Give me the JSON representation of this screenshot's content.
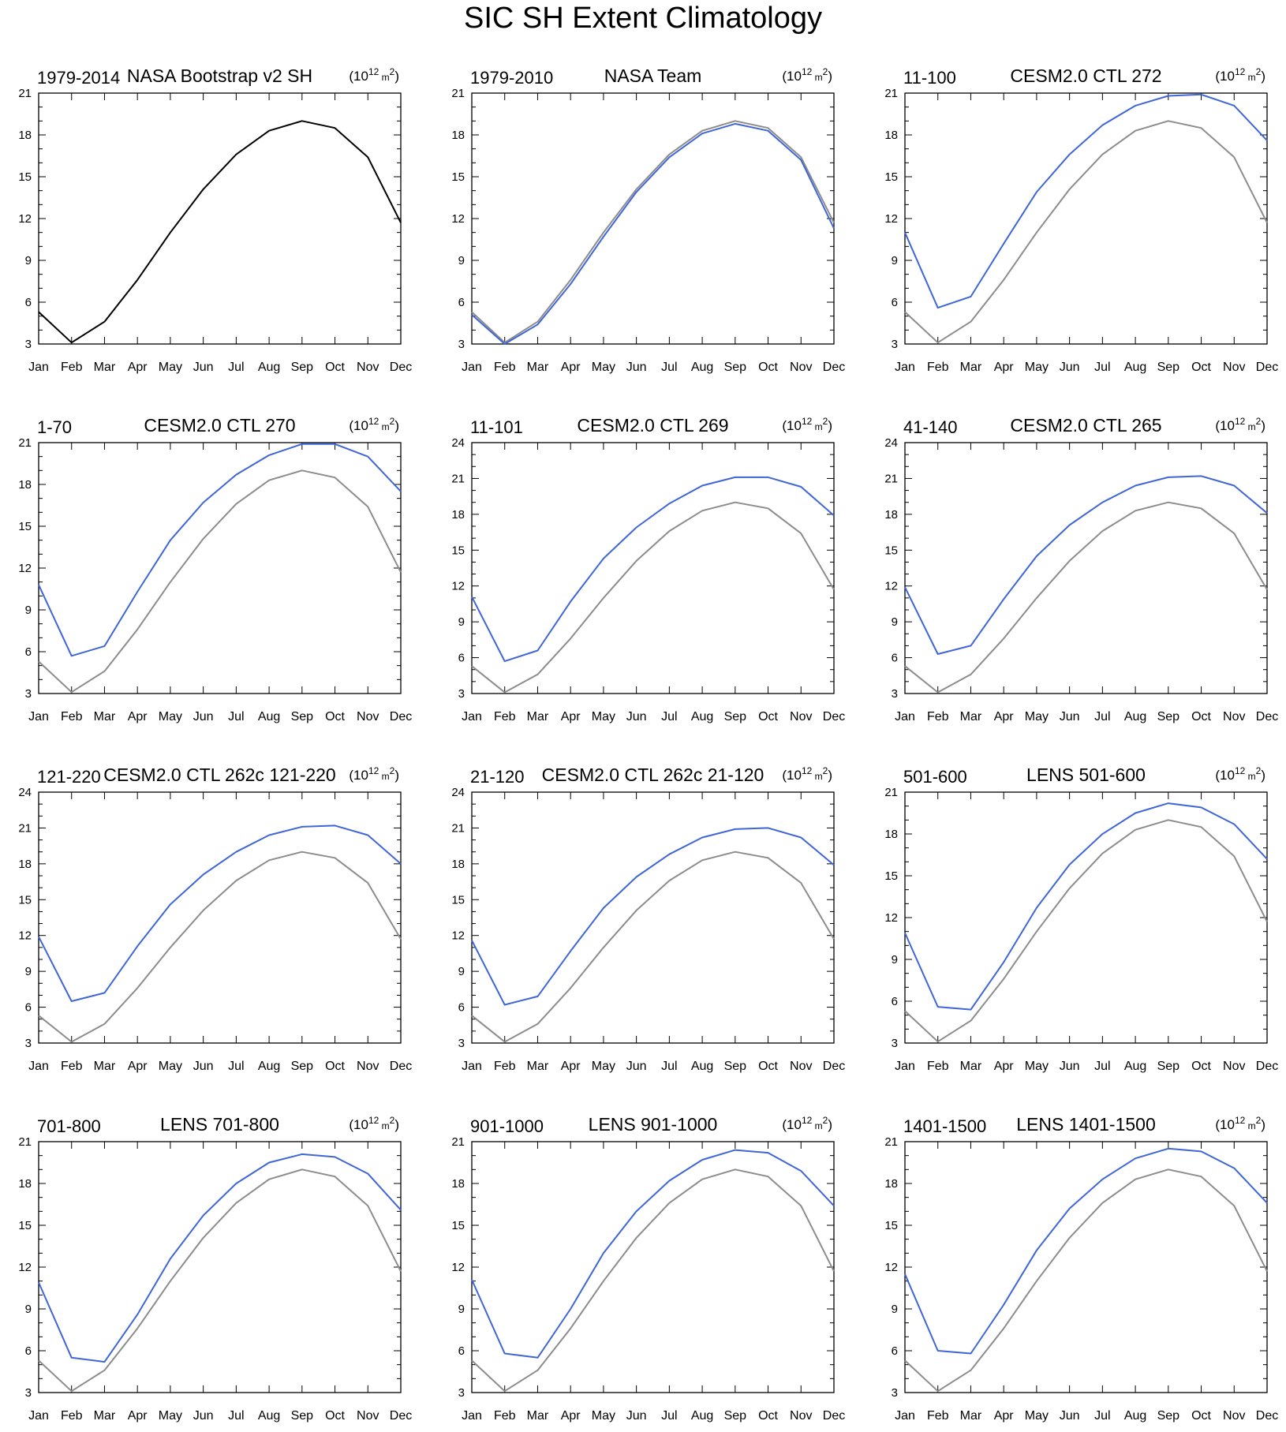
{
  "figure_title": "SIC SH Extent Climatology",
  "colors": {
    "observed": "#000000",
    "reference": "#8c8c8c",
    "model": "#3f66d8"
  },
  "chart_data": [
    {
      "type": "line",
      "period": "1979-2014",
      "title": "NASA Bootstrap v2 SH",
      "units": "(10^12 m^2)",
      "categories": [
        "Jan",
        "Feb",
        "Mar",
        "Apr",
        "May",
        "Jun",
        "Jul",
        "Aug",
        "Sep",
        "Oct",
        "Nov",
        "Dec"
      ],
      "ylim": [
        3,
        21
      ],
      "yticks": [
        3,
        6,
        9,
        12,
        15,
        18,
        21
      ],
      "series": [
        {
          "values": [
            5.3,
            3.1,
            4.6,
            7.6,
            11.0,
            14.1,
            16.6,
            18.3,
            19.0,
            18.5,
            16.4,
            11.7
          ],
          "color": "#000000"
        }
      ]
    },
    {
      "type": "line",
      "period": "1979-2010",
      "title": "NASA Team",
      "units": "(10^12 m^2)",
      "categories": [
        "Jan",
        "Feb",
        "Mar",
        "Apr",
        "May",
        "Jun",
        "Jul",
        "Aug",
        "Sep",
        "Oct",
        "Nov",
        "Dec"
      ],
      "ylim": [
        3,
        21
      ],
      "yticks": [
        3,
        6,
        9,
        12,
        15,
        18,
        21
      ],
      "series": [
        {
          "values": [
            5.3,
            3.1,
            4.6,
            7.6,
            11.0,
            14.1,
            16.6,
            18.3,
            19.0,
            18.5,
            16.4,
            11.7
          ],
          "color": "#8c8c8c"
        },
        {
          "values": [
            5.1,
            3.0,
            4.4,
            7.3,
            10.7,
            13.9,
            16.4,
            18.1,
            18.8,
            18.3,
            16.2,
            11.3
          ],
          "color": "#3f66d8"
        }
      ]
    },
    {
      "type": "line",
      "period": "11-100",
      "title": "CESM2.0 CTL 272",
      "units": "(10^12 m^2)",
      "categories": [
        "Jan",
        "Feb",
        "Mar",
        "Apr",
        "May",
        "Jun",
        "Jul",
        "Aug",
        "Sep",
        "Oct",
        "Nov",
        "Dec"
      ],
      "ylim": [
        3,
        21
      ],
      "yticks": [
        3,
        6,
        9,
        12,
        15,
        18,
        21
      ],
      "series": [
        {
          "values": [
            5.3,
            3.1,
            4.6,
            7.6,
            11.0,
            14.1,
            16.6,
            18.3,
            19.0,
            18.5,
            16.4,
            11.7
          ],
          "color": "#8c8c8c"
        },
        {
          "values": [
            11.0,
            5.6,
            6.4,
            10.2,
            13.9,
            16.6,
            18.7,
            20.1,
            20.8,
            20.9,
            20.1,
            17.6
          ],
          "color": "#3f66d8"
        }
      ]
    },
    {
      "type": "line",
      "period": "1-70",
      "title": "CESM2.0 CTL 270",
      "units": "(10^12 m^2)",
      "categories": [
        "Jan",
        "Feb",
        "Mar",
        "Apr",
        "May",
        "Jun",
        "Jul",
        "Aug",
        "Sep",
        "Oct",
        "Nov",
        "Dec"
      ],
      "ylim": [
        3,
        21
      ],
      "yticks": [
        3,
        6,
        9,
        12,
        15,
        18,
        21
      ],
      "series": [
        {
          "values": [
            5.3,
            3.1,
            4.6,
            7.6,
            11.0,
            14.1,
            16.6,
            18.3,
            19.0,
            18.5,
            16.4,
            11.7
          ],
          "color": "#8c8c8c"
        },
        {
          "values": [
            10.8,
            5.7,
            6.4,
            10.3,
            14.0,
            16.7,
            18.7,
            20.1,
            20.9,
            20.9,
            20.0,
            17.5
          ],
          "color": "#3f66d8"
        }
      ]
    },
    {
      "type": "line",
      "period": "11-101",
      "title": "CESM2.0 CTL 269",
      "units": "(10^12 m^2)",
      "categories": [
        "Jan",
        "Feb",
        "Mar",
        "Apr",
        "May",
        "Jun",
        "Jul",
        "Aug",
        "Sep",
        "Oct",
        "Nov",
        "Dec"
      ],
      "ylim": [
        3,
        24
      ],
      "yticks": [
        3,
        6,
        9,
        12,
        15,
        18,
        21,
        24
      ],
      "series": [
        {
          "values": [
            5.3,
            3.1,
            4.6,
            7.6,
            11.0,
            14.1,
            16.6,
            18.3,
            19.0,
            18.5,
            16.4,
            11.7
          ],
          "color": "#8c8c8c"
        },
        {
          "values": [
            11.1,
            5.7,
            6.6,
            10.7,
            14.3,
            16.9,
            18.9,
            20.4,
            21.1,
            21.1,
            20.3,
            17.9
          ],
          "color": "#3f66d8"
        }
      ]
    },
    {
      "type": "line",
      "period": "41-140",
      "title": "CESM2.0 CTL 265",
      "units": "(10^12 m^2)",
      "categories": [
        "Jan",
        "Feb",
        "Mar",
        "Apr",
        "May",
        "Jun",
        "Jul",
        "Aug",
        "Sep",
        "Oct",
        "Nov",
        "Dec"
      ],
      "ylim": [
        3,
        24
      ],
      "yticks": [
        3,
        6,
        9,
        12,
        15,
        18,
        21,
        24
      ],
      "series": [
        {
          "values": [
            5.3,
            3.1,
            4.6,
            7.6,
            11.0,
            14.1,
            16.6,
            18.3,
            19.0,
            18.5,
            16.4,
            11.7
          ],
          "color": "#8c8c8c"
        },
        {
          "values": [
            11.9,
            6.3,
            7.0,
            10.9,
            14.5,
            17.1,
            19.0,
            20.4,
            21.1,
            21.2,
            20.4,
            18.1
          ],
          "color": "#3f66d8"
        }
      ]
    },
    {
      "type": "line",
      "period": "121-220",
      "title": "CESM2.0 CTL 262c 121-220",
      "units": "(10^12 m^2)",
      "categories": [
        "Jan",
        "Feb",
        "Mar",
        "Apr",
        "May",
        "Jun",
        "Jul",
        "Aug",
        "Sep",
        "Oct",
        "Nov",
        "Dec"
      ],
      "ylim": [
        3,
        24
      ],
      "yticks": [
        3,
        6,
        9,
        12,
        15,
        18,
        21,
        24
      ],
      "series": [
        {
          "values": [
            5.3,
            3.1,
            4.6,
            7.6,
            11.0,
            14.1,
            16.6,
            18.3,
            19.0,
            18.5,
            16.4,
            11.7
          ],
          "color": "#8c8c8c"
        },
        {
          "values": [
            11.9,
            6.5,
            7.2,
            11.1,
            14.6,
            17.1,
            19.0,
            20.4,
            21.1,
            21.2,
            20.4,
            18.0
          ],
          "color": "#3f66d8"
        }
      ]
    },
    {
      "type": "line",
      "period": "21-120",
      "title": "CESM2.0 CTL 262c 21-120",
      "units": "(10^12 m^2)",
      "categories": [
        "Jan",
        "Feb",
        "Mar",
        "Apr",
        "May",
        "Jun",
        "Jul",
        "Aug",
        "Sep",
        "Oct",
        "Nov",
        "Dec"
      ],
      "ylim": [
        3,
        24
      ],
      "yticks": [
        3,
        6,
        9,
        12,
        15,
        18,
        21,
        24
      ],
      "series": [
        {
          "values": [
            5.3,
            3.1,
            4.6,
            7.6,
            11.0,
            14.1,
            16.6,
            18.3,
            19.0,
            18.5,
            16.4,
            11.7
          ],
          "color": "#8c8c8c"
        },
        {
          "values": [
            11.6,
            6.2,
            6.9,
            10.7,
            14.3,
            16.9,
            18.8,
            20.2,
            20.9,
            21.0,
            20.2,
            17.9
          ],
          "color": "#3f66d8"
        }
      ]
    },
    {
      "type": "line",
      "period": "501-600",
      "title": "LENS 501-600",
      "units": "(10^12 m^2)",
      "categories": [
        "Jan",
        "Feb",
        "Mar",
        "Apr",
        "May",
        "Jun",
        "Jul",
        "Aug",
        "Sep",
        "Oct",
        "Nov",
        "Dec"
      ],
      "ylim": [
        3,
        21
      ],
      "yticks": [
        3,
        6,
        9,
        12,
        15,
        18,
        21
      ],
      "series": [
        {
          "values": [
            5.3,
            3.1,
            4.6,
            7.6,
            11.0,
            14.1,
            16.6,
            18.3,
            19.0,
            18.5,
            16.4,
            11.7
          ],
          "color": "#8c8c8c"
        },
        {
          "values": [
            10.9,
            5.6,
            5.4,
            8.8,
            12.7,
            15.8,
            18.0,
            19.5,
            20.2,
            19.9,
            18.7,
            16.2
          ],
          "color": "#3f66d8"
        }
      ]
    },
    {
      "type": "line",
      "period": "701-800",
      "title": "LENS 701-800",
      "units": "(10^12 m^2)",
      "categories": [
        "Jan",
        "Feb",
        "Mar",
        "Apr",
        "May",
        "Jun",
        "Jul",
        "Aug",
        "Sep",
        "Oct",
        "Nov",
        "Dec"
      ],
      "ylim": [
        3,
        21
      ],
      "yticks": [
        3,
        6,
        9,
        12,
        15,
        18,
        21
      ],
      "series": [
        {
          "values": [
            5.3,
            3.1,
            4.6,
            7.6,
            11.0,
            14.1,
            16.6,
            18.3,
            19.0,
            18.5,
            16.4,
            11.7
          ],
          "color": "#8c8c8c"
        },
        {
          "values": [
            10.9,
            5.5,
            5.2,
            8.6,
            12.6,
            15.7,
            18.0,
            19.5,
            20.1,
            19.9,
            18.7,
            16.1
          ],
          "color": "#3f66d8"
        }
      ]
    },
    {
      "type": "line",
      "period": "901-1000",
      "title": "LENS 901-1000",
      "units": "(10^12 m^2)",
      "categories": [
        "Jan",
        "Feb",
        "Mar",
        "Apr",
        "May",
        "Jun",
        "Jul",
        "Aug",
        "Sep",
        "Oct",
        "Nov",
        "Dec"
      ],
      "ylim": [
        3,
        21
      ],
      "yticks": [
        3,
        6,
        9,
        12,
        15,
        18,
        21
      ],
      "series": [
        {
          "values": [
            5.3,
            3.1,
            4.6,
            7.6,
            11.0,
            14.1,
            16.6,
            18.3,
            19.0,
            18.5,
            16.4,
            11.7
          ],
          "color": "#8c8c8c"
        },
        {
          "values": [
            11.1,
            5.8,
            5.5,
            9.0,
            13.0,
            16.0,
            18.2,
            19.7,
            20.4,
            20.2,
            18.9,
            16.4
          ],
          "color": "#3f66d8"
        }
      ]
    },
    {
      "type": "line",
      "period": "1401-1500",
      "title": "LENS 1401-1500",
      "units": "(10^12 m^2)",
      "categories": [
        "Jan",
        "Feb",
        "Mar",
        "Apr",
        "May",
        "Jun",
        "Jul",
        "Aug",
        "Sep",
        "Oct",
        "Nov",
        "Dec"
      ],
      "ylim": [
        3,
        21
      ],
      "yticks": [
        3,
        6,
        9,
        12,
        15,
        18,
        21
      ],
      "series": [
        {
          "values": [
            5.3,
            3.1,
            4.6,
            7.6,
            11.0,
            14.1,
            16.6,
            18.3,
            19.0,
            18.5,
            16.4,
            11.7
          ],
          "color": "#8c8c8c"
        },
        {
          "values": [
            11.5,
            6.0,
            5.8,
            9.3,
            13.2,
            16.2,
            18.3,
            19.8,
            20.5,
            20.3,
            19.1,
            16.6
          ],
          "color": "#3f66d8"
        }
      ]
    }
  ]
}
